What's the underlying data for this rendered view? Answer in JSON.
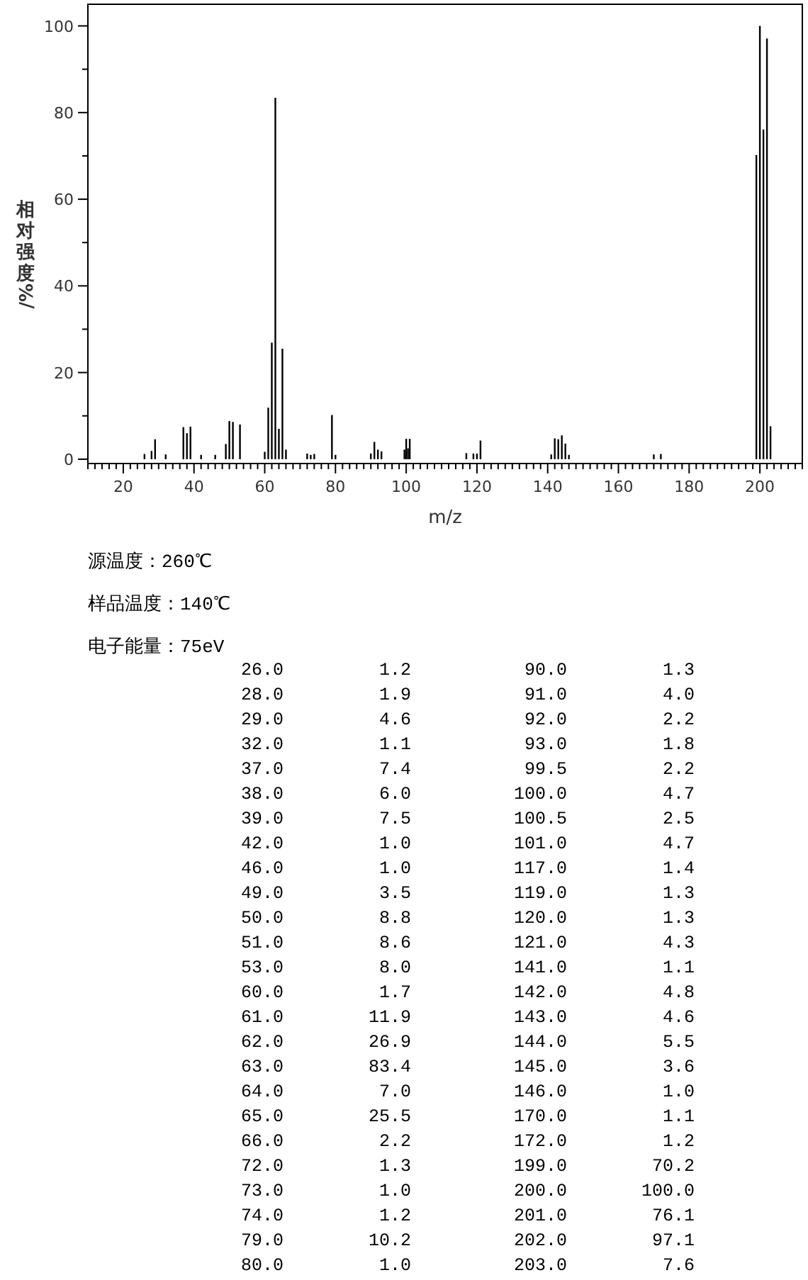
{
  "chart_data": {
    "type": "bar",
    "xlabel": "m/z",
    "ylabel": "相对强度/%",
    "color": "#000000",
    "x": [
      26,
      28,
      29,
      32,
      37,
      38,
      39,
      42,
      46,
      49,
      50,
      51,
      53,
      60,
      61,
      62,
      63,
      64,
      65,
      66,
      72,
      73,
      74,
      79,
      80,
      90,
      91,
      92,
      93,
      99.5,
      100,
      100.5,
      101,
      117,
      119,
      120,
      121,
      141,
      142,
      143,
      144,
      145,
      146,
      170,
      172,
      199,
      200,
      201,
      202,
      203
    ],
    "values": [
      1.2,
      1.9,
      4.6,
      1.1,
      7.4,
      6.0,
      7.5,
      1.0,
      1.0,
      3.5,
      8.8,
      8.6,
      8.0,
      1.7,
      11.9,
      26.9,
      83.4,
      7.0,
      25.5,
      2.2,
      1.3,
      1.0,
      1.2,
      10.2,
      1.0,
      1.3,
      4.0,
      2.2,
      1.8,
      2.2,
      4.7,
      2.5,
      4.7,
      1.4,
      1.3,
      1.3,
      4.3,
      1.1,
      4.8,
      4.6,
      5.5,
      3.6,
      1.0,
      1.1,
      1.2,
      70.2,
      100.0,
      76.1,
      97.1,
      7.6
    ],
    "xlim": [
      10,
      212
    ],
    "ylim": [
      -1,
      105
    ],
    "xticks": [
      20,
      40,
      60,
      80,
      100,
      120,
      140,
      160,
      180,
      200
    ],
    "yticks": [
      0,
      20,
      40,
      60,
      80,
      100
    ],
    "annotations": [
      "源温度：260℃",
      "样品温度：140℃",
      "电子能量：75eV",
      "26.0",
      "1.2",
      "90.0",
      "1.3",
      "28.0",
      "1.9",
      "91.0",
      "4.0",
      "29.0",
      "4.6",
      "92.0",
      "2.2",
      "32.0",
      "1.1",
      "93.0",
      "1.8",
      "37.0",
      "7.4",
      "99.5",
      "2.2",
      "38.0",
      "6.0",
      "100.0",
      "4.7",
      "39.0",
      "7.5",
      "100.5",
      "2.5",
      "42.0",
      "1.0",
      "101.0",
      "4.7",
      "46.0",
      "1.0",
      "117.0",
      "1.4",
      "49.0",
      "3.5",
      "119.0",
      "1.3",
      "50.0",
      "8.8",
      "120.0",
      "1.3",
      "51.0",
      "8.6",
      "121.0",
      "4.3",
      "53.0",
      "8.0",
      "141.0",
      "1.1",
      "60.0",
      "1.7",
      "142.0",
      "4.8",
      "61.0",
      "11.9",
      "143.0",
      "4.6",
      "62.0",
      "26.9",
      "144.0",
      "5.5",
      "63.0",
      "83.4",
      "145.0",
      "3.6",
      "64.0",
      "7.0",
      "146.0",
      "1.0",
      "65.0",
      "25.5",
      "170.0",
      "1.1",
      "66.0",
      "2.2",
      "172.0",
      "1.2",
      "72.0",
      "1.3",
      "199.0",
      "70.2",
      "73.0",
      "1.0",
      "200.0",
      "100.0",
      "74.0",
      "1.2",
      "201.0",
      "76.1",
      "79.0",
      "10.2",
      "202.0",
      "97.1",
      "80.0",
      "1.0",
      "203.0",
      "7.6"
    ]
  }
}
